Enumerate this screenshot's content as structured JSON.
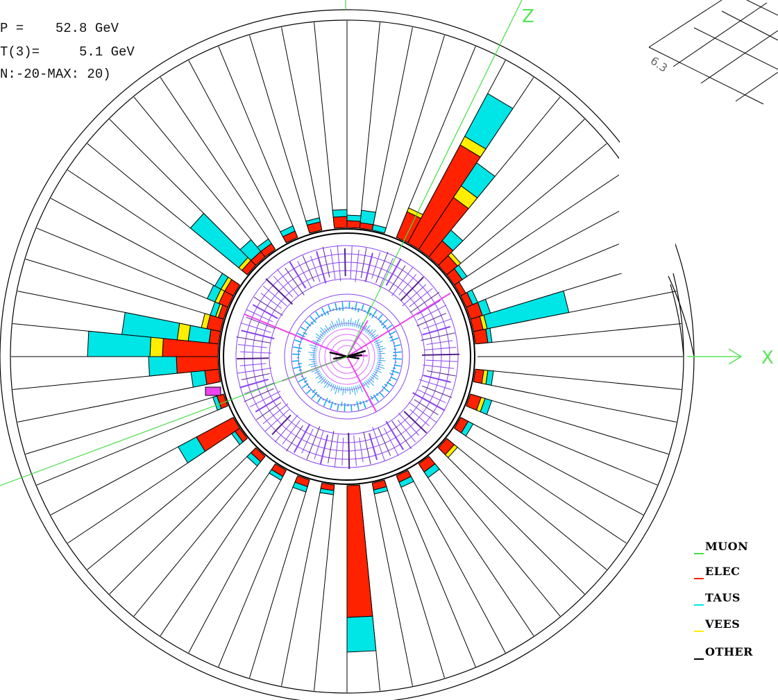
{
  "header": {
    "line1": "P =    52.8 GeV",
    "line2": "T(3)=     5.1 GeV",
    "line3": "N:-20-MAX: 20)"
  },
  "axes": {
    "x_label": "X",
    "z_label": "Z"
  },
  "lego_plot": {
    "corner_value": "6.3"
  },
  "legend": {
    "items": [
      {
        "label": "MUON",
        "color": "#44dd44"
      },
      {
        "label": "ELEC",
        "color": "#ff2200"
      },
      {
        "label": "TAUS",
        "color": "#00e5e5"
      },
      {
        "label": "VEES",
        "color": "#ffee00"
      },
      {
        "label": "OTHER",
        "color": "#000000"
      }
    ]
  },
  "colors": {
    "elec": "#ff2200",
    "taus": "#00e5e5",
    "vees": "#ffee00",
    "muon": "#44dd44",
    "tracks": "#8844ee",
    "tracks_light": "#dd66ff",
    "frame": "#000000"
  }
}
